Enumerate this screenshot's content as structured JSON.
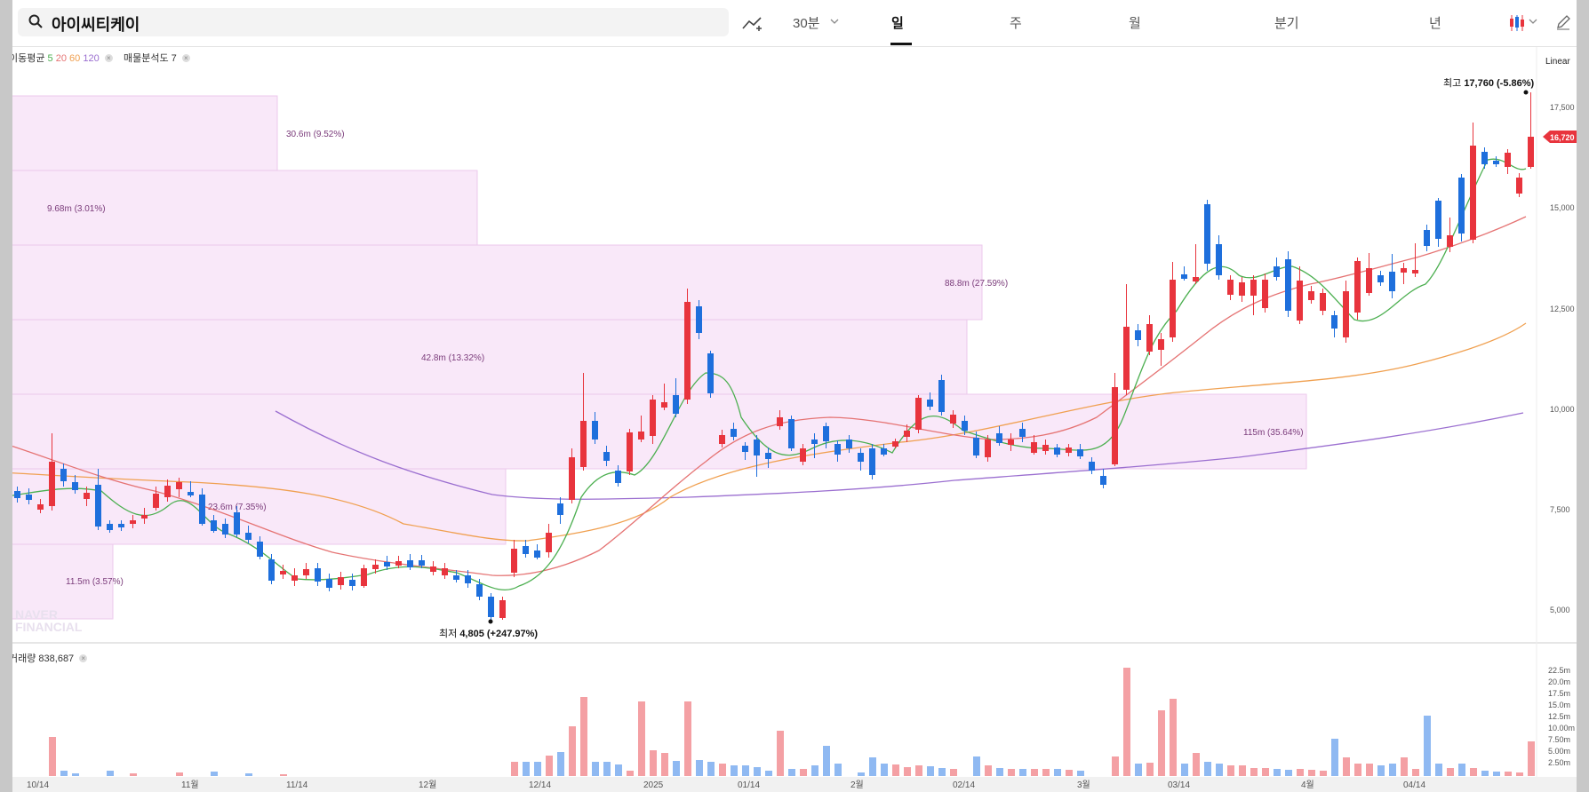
{
  "search": {
    "query": "아이씨티케이"
  },
  "periods": [
    "30분",
    "일",
    "주",
    "월",
    "분기",
    "년"
  ],
  "active_period": "일",
  "scale_label": "Linear",
  "indicators": {
    "ma_label": "이동평균",
    "ma_periods": [
      {
        "label": "5",
        "color": "#4caf50"
      },
      {
        "label": "20",
        "color": "#e57373"
      },
      {
        "label": "60",
        "color": "#f0a050"
      },
      {
        "label": "120",
        "color": "#9b6fd0"
      }
    ],
    "volume_profile_label": "매물분석도 7"
  },
  "price_axis": [
    "17,500",
    "15,000",
    "12,500",
    "10,000",
    "7,500",
    "5,000"
  ],
  "current_price": "16,720",
  "high_marker": {
    "label": "최고",
    "value": "17,760 (-5.86%)"
  },
  "low_marker": {
    "label": "최저",
    "value": "4,805 (+247.97%)"
  },
  "volume_profile": [
    "30.6m (9.52%)",
    "9.68m (3.01%)",
    "88.8m (27.59%)",
    "42.8m (13.32%)",
    "115m (35.64%)",
    "23.6m (7.35%)",
    "11.5m (3.57%)"
  ],
  "volume_label": "거래량 838,687",
  "volume_axis": [
    "22.5m",
    "20.0m",
    "17.5m",
    "15.0m",
    "12.5m",
    "10.00m",
    "7.50m",
    "5.00m",
    "2.50m"
  ],
  "date_axis": [
    "10/14",
    "11월",
    "11/14",
    "12월",
    "12/14",
    "2025",
    "01/14",
    "2월",
    "02/14",
    "3월",
    "03/14",
    "4월",
    "04/14"
  ],
  "watermark": [
    "NAVER",
    "FINANCIAL"
  ],
  "colors": {
    "up": "#e8343d",
    "down": "#1e6fdc",
    "profile": "#f9e8f9"
  }
}
